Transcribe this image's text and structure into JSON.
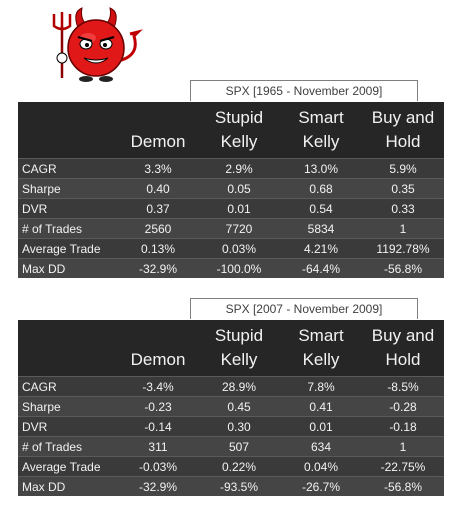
{
  "table1": {
    "title": "SPX [1965 - November 2009]",
    "headers": [
      {
        "line1": "",
        "line2": "Demon"
      },
      {
        "line1": "Stupid",
        "line2": "Kelly"
      },
      {
        "line1": "Smart",
        "line2": "Kelly"
      },
      {
        "line1": "Buy and",
        "line2": "Hold"
      }
    ],
    "rows": [
      {
        "label": "CAGR",
        "values": [
          "3.3%",
          "2.9%",
          "13.0%",
          "5.9%"
        ]
      },
      {
        "label": "Sharpe",
        "values": [
          "0.40",
          "0.05",
          "0.68",
          "0.35"
        ]
      },
      {
        "label": "DVR",
        "values": [
          "0.37",
          "0.01",
          "0.54",
          "0.33"
        ]
      },
      {
        "label": "# of Trades",
        "values": [
          "2560",
          "7720",
          "5834",
          "1"
        ]
      },
      {
        "label": "Average Trade",
        "values": [
          "0.13%",
          "0.03%",
          "4.21%",
          "1192.78%"
        ]
      },
      {
        "label": "Max DD",
        "values": [
          "-32.9%",
          "-100.0%",
          "-64.4%",
          "-56.8%"
        ]
      }
    ]
  },
  "table2": {
    "title": "SPX [2007 - November 2009]",
    "headers": [
      {
        "line1": "",
        "line2": "Demon"
      },
      {
        "line1": "Stupid",
        "line2": "Kelly"
      },
      {
        "line1": "Smart",
        "line2": "Kelly"
      },
      {
        "line1": "Buy and",
        "line2": "Hold"
      }
    ],
    "rows": [
      {
        "label": "CAGR",
        "values": [
          "-3.4%",
          "28.9%",
          "7.8%",
          "-8.5%"
        ]
      },
      {
        "label": "Sharpe",
        "values": [
          "-0.23",
          "0.45",
          "0.41",
          "-0.28"
        ]
      },
      {
        "label": "DVR",
        "values": [
          "-0.14",
          "0.30",
          "0.01",
          "-0.18"
        ]
      },
      {
        "label": "# of Trades",
        "values": [
          "311",
          "507",
          "634",
          "1"
        ]
      },
      {
        "label": "Average Trade",
        "values": [
          "-0.03%",
          "0.22%",
          "0.04%",
          "-22.75%"
        ]
      },
      {
        "label": "Max DD",
        "values": [
          "-32.9%",
          "-93.5%",
          "-26.7%",
          "-56.8%"
        ]
      }
    ]
  }
}
